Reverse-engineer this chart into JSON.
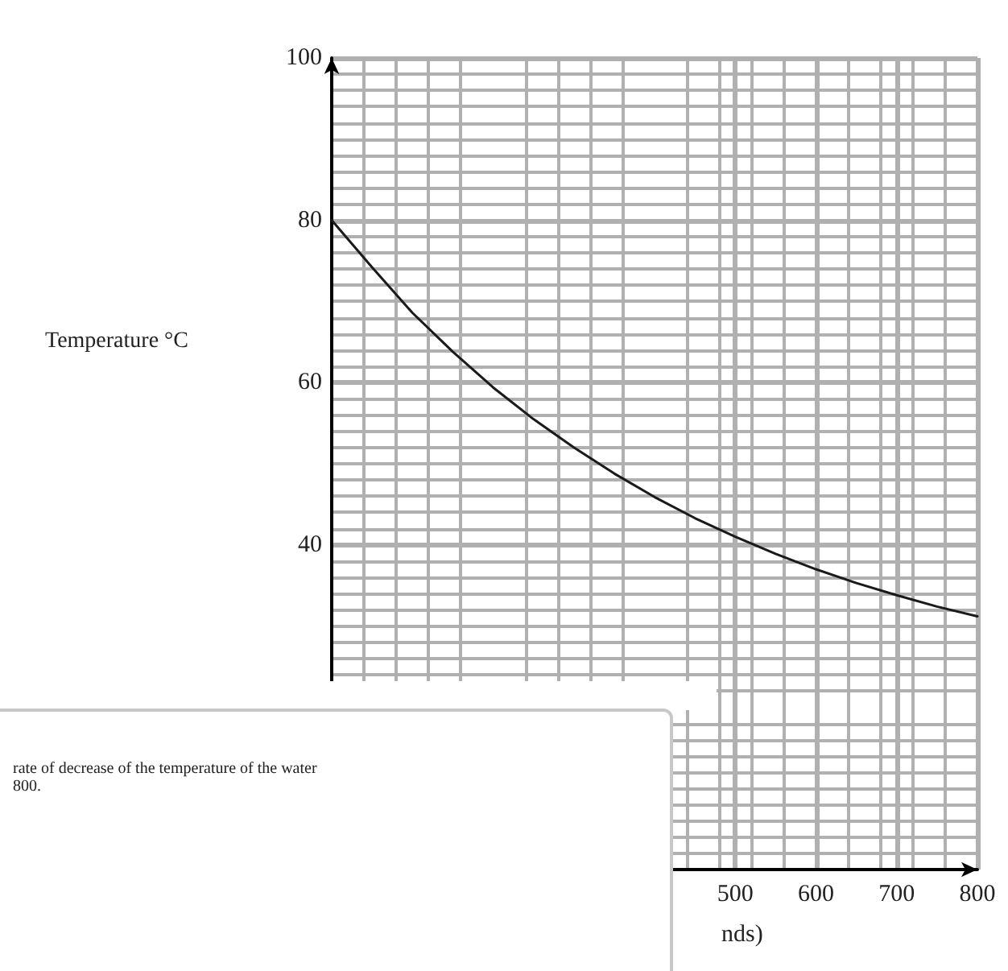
{
  "chart_data": {
    "type": "line",
    "ylabel": "Temperature °C",
    "xlabel": "nds)",
    "x": [
      0,
      50,
      100,
      150,
      200,
      250,
      300,
      350,
      400,
      450,
      500,
      550,
      600,
      650,
      700,
      750,
      800
    ],
    "series": [
      {
        "color": "#1a1a1a",
        "values": [
          80,
          74.2,
          68.6,
          63.8,
          59.4,
          55.5,
          52,
          48.8,
          45.9,
          43.3,
          41,
          38.9,
          37,
          35.3,
          33.8,
          32.4,
          31.2
        ]
      }
    ],
    "xlim": [
      0,
      800
    ],
    "xticks": [
      500,
      600,
      700,
      800
    ],
    "ylim": [
      0,
      100
    ],
    "yticks": [
      40,
      60,
      80,
      100
    ],
    "grid": true,
    "marker": "none",
    "line_style": "solid",
    "annotations": [
      "rate of decrease of the temperature of the water",
      "800."
    ]
  }
}
